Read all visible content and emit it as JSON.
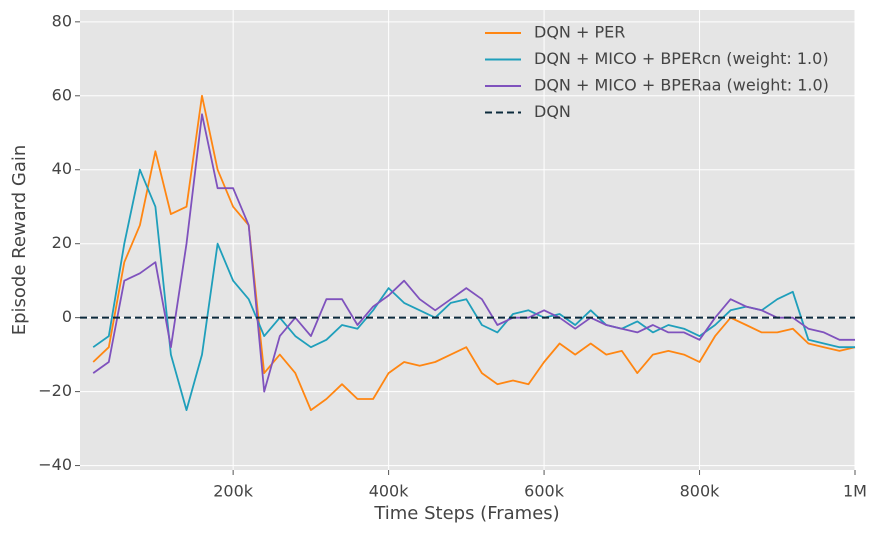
{
  "chart_data": {
    "type": "line",
    "x_label": "Time Steps (Frames)",
    "y_label": "Episode Reward Gain",
    "x": [
      20000,
      40000,
      60000,
      80000,
      100000,
      120000,
      140000,
      160000,
      180000,
      200000,
      220000,
      240000,
      260000,
      280000,
      300000,
      320000,
      340000,
      360000,
      380000,
      400000,
      420000,
      440000,
      460000,
      480000,
      500000,
      520000,
      540000,
      560000,
      580000,
      600000,
      620000,
      640000,
      660000,
      680000,
      700000,
      720000,
      740000,
      760000,
      780000,
      800000,
      820000,
      840000,
      860000,
      880000,
      900000,
      920000,
      940000,
      960000,
      980000,
      1000000
    ],
    "series": [
      {
        "name": "DQN + PER",
        "color": "#ff8612",
        "values": [
          -12,
          -8,
          15,
          25,
          45,
          28,
          30,
          60,
          40,
          30,
          25,
          -15,
          -10,
          -15,
          -25,
          -22,
          -18,
          -22,
          -22,
          -15,
          -12,
          -13,
          -12,
          -10,
          -8,
          -15,
          -18,
          -17,
          -18,
          -12,
          -7,
          -10,
          -7,
          -10,
          -9,
          -15,
          -10,
          -9,
          -10,
          -12,
          -5,
          0,
          -2,
          -4,
          -4,
          -3,
          -7,
          -8,
          -9,
          -8
        ]
      },
      {
        "name": "DQN + MICO + BPERcn (weight: 1.0)",
        "color": "#1f9fbb",
        "values": [
          -8,
          -5,
          20,
          40,
          30,
          -10,
          -25,
          -10,
          20,
          10,
          5,
          -5,
          0,
          -5,
          -8,
          -6,
          -2,
          -3,
          2,
          8,
          4,
          2,
          0,
          4,
          5,
          -2,
          -4,
          1,
          2,
          0,
          1,
          -2,
          2,
          -2,
          -3,
          -1,
          -4,
          -2,
          -3,
          -5,
          -2,
          2,
          3,
          2,
          5,
          7,
          -6,
          -7,
          -8,
          -8
        ]
      },
      {
        "name": "DQN + MICO + BPERaa (weight: 1.0)",
        "color": "#7f52bd",
        "values": [
          -15,
          -12,
          10,
          12,
          15,
          -8,
          20,
          55,
          35,
          35,
          25,
          -20,
          -5,
          0,
          -5,
          5,
          5,
          -2,
          3,
          6,
          10,
          5,
          2,
          5,
          8,
          5,
          -2,
          0,
          0,
          2,
          0,
          -3,
          0,
          -2,
          -3,
          -4,
          -2,
          -4,
          -4,
          -6,
          0,
          5,
          3,
          2,
          0,
          0,
          -3,
          -4,
          -6,
          -6
        ]
      },
      {
        "name": "DQN",
        "color": "#0c2a3c",
        "hline": 0,
        "dashed": true
      }
    ],
    "xlim": [
      3000,
      1000000
    ],
    "ylim": [
      -41.2,
      83.2
    ],
    "xticks": [
      {
        "value": 200000,
        "label": "200k"
      },
      {
        "value": 400000,
        "label": "400k"
      },
      {
        "value": 600000,
        "label": "600k"
      },
      {
        "value": 800000,
        "label": "800k"
      },
      {
        "value": 1000000,
        "label": "1M"
      }
    ],
    "yticks": [
      {
        "value": -40,
        "label": "−40"
      },
      {
        "value": -20,
        "label": "−20"
      },
      0,
      20,
      40,
      60,
      80
    ],
    "grid": true,
    "legend": "upper-right"
  }
}
